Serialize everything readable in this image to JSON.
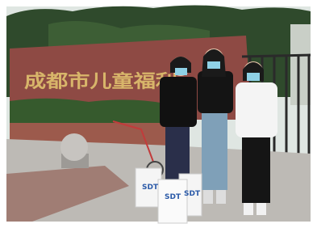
{
  "sign": {
    "text": "成都市儿童福利"
  },
  "bags": [
    {
      "label": "SDT"
    },
    {
      "label": "SDT"
    },
    {
      "label": "SDT"
    }
  ]
}
